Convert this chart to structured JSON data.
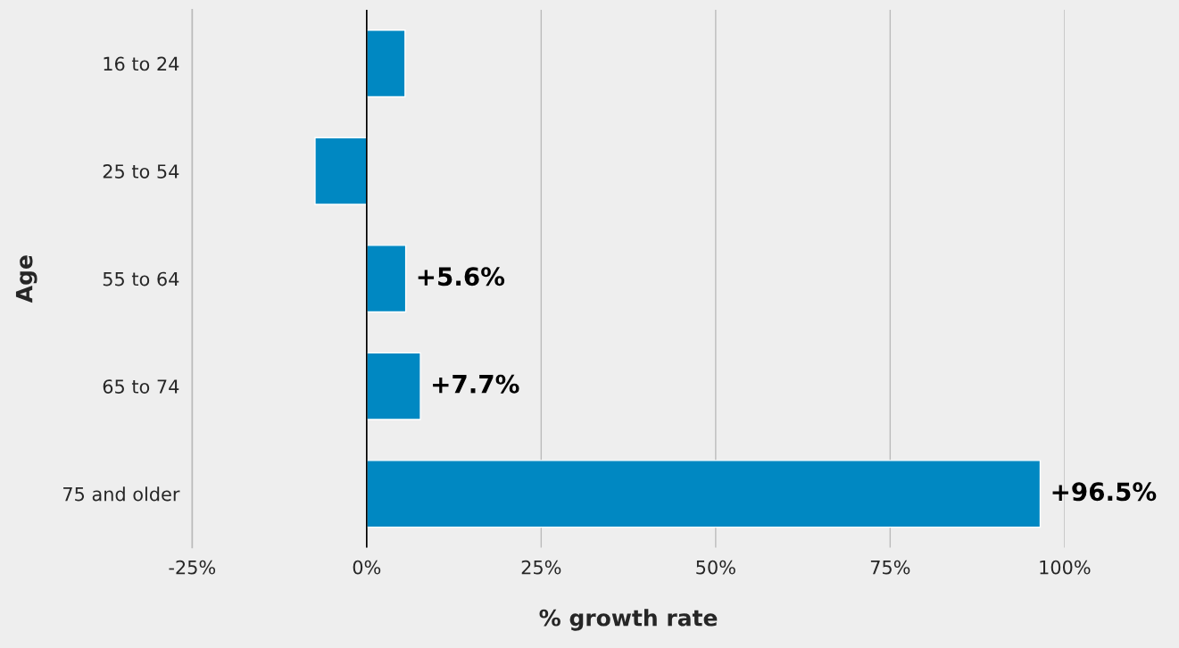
{
  "chart_data": {
    "type": "bar",
    "orientation": "horizontal",
    "xlabel": "% growth rate",
    "ylabel": "Age",
    "categories": [
      "16 to 24",
      "25 to 54",
      "55 to 64",
      "65 to 74",
      "75 and older"
    ],
    "values": [
      5.5,
      -7.4,
      5.6,
      7.7,
      96.5
    ],
    "value_labels": [
      null,
      null,
      "+5.6%",
      "+7.7%",
      "+96.5%"
    ],
    "color": "#0088c2",
    "xlim": [
      -25,
      100
    ],
    "xticks": [
      {
        "value": -25,
        "label": "-25%"
      },
      {
        "value": 0,
        "label": "0%"
      },
      {
        "value": 25,
        "label": "25%"
      },
      {
        "value": 50,
        "label": "50%"
      },
      {
        "value": 75,
        "label": "75%"
      },
      {
        "value": 100,
        "label": "100%"
      }
    ],
    "grid": "x",
    "legend": false
  }
}
